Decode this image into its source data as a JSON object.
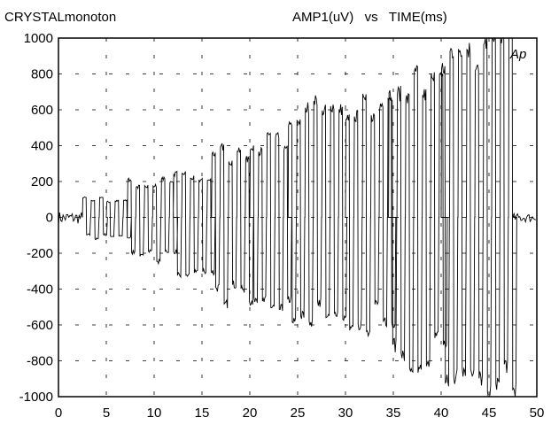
{
  "chart_data": {
    "type": "line",
    "title_left": "CRYSTALmonoton",
    "title_center": "AMP1(uV)   vs   TIME(ms)",
    "annotation": "Ap",
    "xlim": [
      0,
      50
    ],
    "ylim": [
      -1000,
      1000
    ],
    "x_ticks": [
      "0",
      "5",
      "10",
      "15",
      "20",
      "25",
      "30",
      "35",
      "40",
      "45",
      "50"
    ],
    "y_ticks": [
      "1000",
      "800",
      "600",
      "400",
      "200",
      "0",
      "-200",
      "-400",
      "-600",
      "-800",
      "-1000"
    ],
    "grid": true,
    "series": [
      {
        "description_trace": "biphasic pulse train",
        "segments": [
          {
            "x_start": 0.0,
            "x_end": 2.5,
            "y_high": 30,
            "y_low": -40
          },
          {
            "x_start": 2.5,
            "x_end": 5.0,
            "y_high": 100,
            "y_low": -110
          },
          {
            "x_start": 5.0,
            "x_end": 7.2,
            "y_high": 90,
            "y_low": -100
          },
          {
            "x_start": 7.2,
            "x_end": 12.0,
            "y_high": 190,
            "y_low": -220
          },
          {
            "x_start": 12.0,
            "x_end": 16.0,
            "y_high": 230,
            "y_low": -290
          },
          {
            "x_start": 16.0,
            "x_end": 20.0,
            "y_high": 350,
            "y_low": -430
          },
          {
            "x_start": 20.0,
            "x_end": 24.0,
            "y_high": 430,
            "y_low": -480
          },
          {
            "x_start": 24.0,
            "x_end": 30.0,
            "y_high": 580,
            "y_low": -520
          },
          {
            "x_start": 30.0,
            "x_end": 34.5,
            "y_high": 620,
            "y_low": -560
          },
          {
            "x_start": 34.5,
            "x_end": 40.0,
            "y_high": 730,
            "y_low": -780
          },
          {
            "x_start": 40.0,
            "x_end": 47.5,
            "y_high": 900,
            "y_low": -870
          },
          {
            "x_start": 47.5,
            "x_end": 50.0,
            "y_high": 20,
            "y_low": -30
          }
        ]
      }
    ]
  },
  "colors": {
    "line": "#000000",
    "grid": "#000000",
    "background": "#ffffff"
  }
}
